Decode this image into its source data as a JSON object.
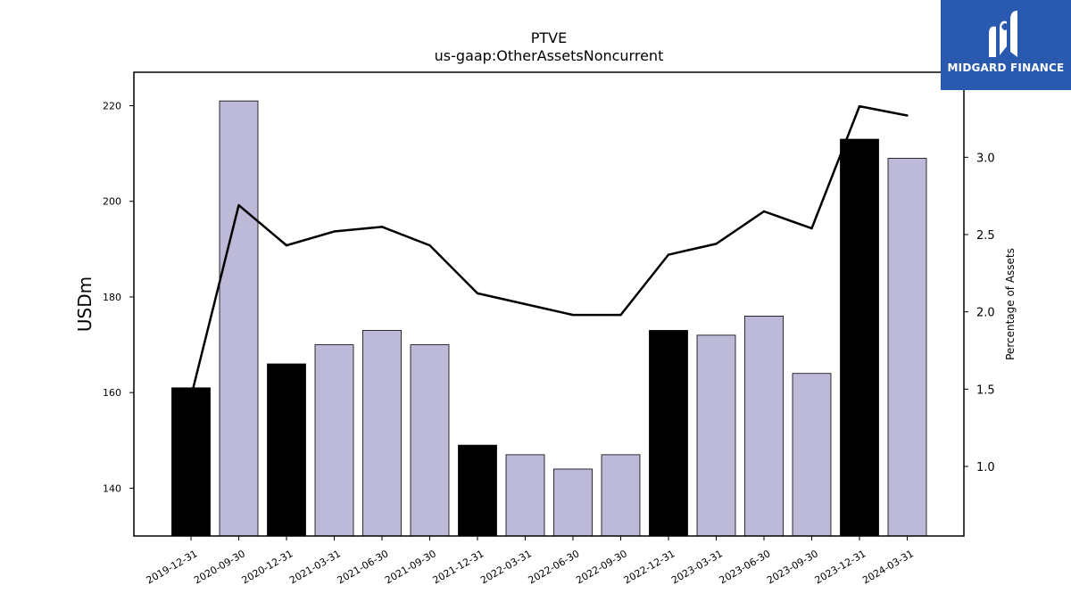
{
  "chart_data": {
    "type": "bar",
    "title": "PTVE",
    "subtitle": "us-gaap:OtherAssetsNoncurrent",
    "ylabel": "USDm",
    "y2label": "Percentage of Assets",
    "categories": [
      "2019-12-31",
      "2020-09-30",
      "2020-12-31",
      "2021-03-31",
      "2021-06-30",
      "2021-09-30",
      "2021-12-31",
      "2022-03-31",
      "2022-06-30",
      "2022-09-30",
      "2022-12-31",
      "2023-03-31",
      "2023-06-30",
      "2023-09-30",
      "2023-12-31",
      "2024-03-31"
    ],
    "series": [
      {
        "type": "bar",
        "values": [
          161,
          221,
          166,
          170,
          173,
          170,
          149,
          147,
          144,
          147,
          173,
          172,
          176,
          164,
          213,
          209
        ]
      },
      {
        "type": "line",
        "axis": "right",
        "values": [
          1.45,
          2.69,
          2.43,
          2.52,
          2.55,
          2.43,
          2.12,
          2.05,
          1.98,
          1.98,
          2.37,
          2.44,
          2.65,
          2.54,
          3.33,
          3.27
        ]
      }
    ],
    "bar_colors": [
      "#000000",
      "#bdb9d9",
      "#000000",
      "#bdb9d9",
      "#bdb9d9",
      "#bdb9d9",
      "#000000",
      "#bdb9d9",
      "#bdb9d9",
      "#bdb9d9",
      "#000000",
      "#bdb9d9",
      "#bdb9d9",
      "#bdb9d9",
      "#000000",
      "#bdb9d9"
    ],
    "ylim": [
      130,
      227
    ],
    "y2lim": [
      0.55,
      3.55
    ],
    "yticks": [
      140,
      160,
      180,
      200,
      220
    ],
    "y2ticks": [
      1.0,
      1.5,
      2.0,
      2.5,
      3.0
    ],
    "y2tick_labels": [
      "1.0",
      "1.5",
      "2.0",
      "2.5",
      "3.0"
    ],
    "grid": false,
    "legend": "none"
  },
  "logo": {
    "text": "MIDGARD FINANCE",
    "background": "#2a5ab0"
  }
}
